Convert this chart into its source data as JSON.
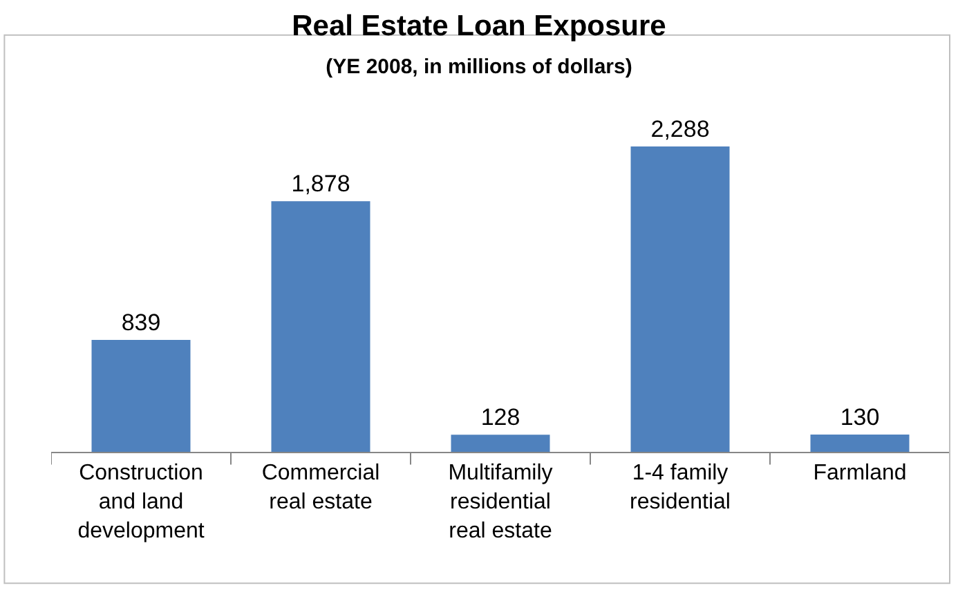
{
  "chart_data": {
    "type": "bar",
    "title": "Real Estate Loan Exposure",
    "subtitle": "(YE 2008, in millions of dollars)",
    "categories": [
      "Construction and land development",
      "Commercial real estate",
      "Multifamily residential real estate",
      "1-4 family residential",
      "Farmland"
    ],
    "values": [
      839,
      1878,
      128,
      2288,
      130
    ],
    "value_labels": [
      "839",
      "1,878",
      "128",
      "2,288",
      "130"
    ],
    "color": "#4f81bd"
  }
}
